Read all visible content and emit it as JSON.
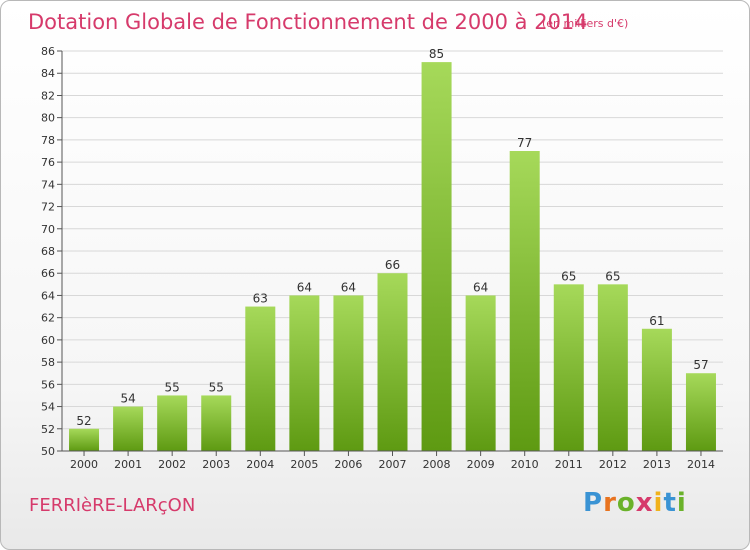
{
  "header": {
    "title": "Dotation Globale de Fonctionnement de 2000 à 2014",
    "subtitle": "(en milliers d'€)"
  },
  "footer": {
    "commune": "FERRIèRE-LARçON",
    "logo": "Proxiti"
  },
  "colors": {
    "title": "#d63a6b",
    "bar_top": "#a6d95a",
    "bar_bottom": "#5e9a12",
    "grid": "#d8d8d8"
  },
  "chart_data": {
    "type": "bar",
    "title": "Dotation Globale de Fonctionnement de 2000 à 2014",
    "subtitle": "(en milliers d'€)",
    "categories": [
      "2000",
      "2001",
      "2002",
      "2003",
      "2004",
      "2005",
      "2006",
      "2007",
      "2008",
      "2009",
      "2010",
      "2011",
      "2012",
      "2013",
      "2014"
    ],
    "values": [
      52,
      54,
      55,
      55,
      63,
      64,
      64,
      66,
      85,
      64,
      77,
      65,
      65,
      61,
      57
    ],
    "ylim": [
      50,
      86
    ],
    "yticks": [
      50,
      52,
      54,
      56,
      58,
      60,
      62,
      64,
      66,
      68,
      70,
      72,
      74,
      76,
      78,
      80,
      82,
      84,
      86
    ],
    "grid": true,
    "legend": "none",
    "xlabel": "",
    "ylabel": ""
  }
}
